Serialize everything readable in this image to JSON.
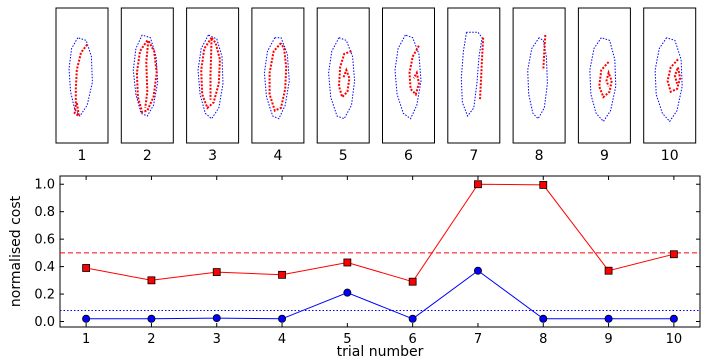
{
  "trials": [
    {
      "label": "1",
      "blue": [
        [
          0.42,
          0.22
        ],
        [
          0.3,
          0.3
        ],
        [
          0.25,
          0.45
        ],
        [
          0.28,
          0.62
        ],
        [
          0.36,
          0.75
        ],
        [
          0.46,
          0.8
        ],
        [
          0.6,
          0.72
        ],
        [
          0.7,
          0.55
        ],
        [
          0.68,
          0.36
        ],
        [
          0.58,
          0.24
        ],
        [
          0.42,
          0.22
        ]
      ],
      "red": [
        [
          0.6,
          0.27
        ],
        [
          0.48,
          0.33
        ],
        [
          0.4,
          0.46
        ],
        [
          0.38,
          0.6
        ],
        [
          0.38,
          0.72
        ],
        [
          0.36,
          0.78
        ],
        [
          0.44,
          0.8
        ],
        [
          0.4,
          0.7
        ]
      ]
    },
    {
      "label": "2",
      "blue": [
        [
          0.4,
          0.2
        ],
        [
          0.28,
          0.3
        ],
        [
          0.23,
          0.46
        ],
        [
          0.28,
          0.64
        ],
        [
          0.38,
          0.78
        ],
        [
          0.5,
          0.8
        ],
        [
          0.62,
          0.72
        ],
        [
          0.7,
          0.55
        ],
        [
          0.67,
          0.36
        ],
        [
          0.56,
          0.22
        ],
        [
          0.4,
          0.2
        ]
      ],
      "red": [
        [
          0.5,
          0.24
        ],
        [
          0.36,
          0.32
        ],
        [
          0.3,
          0.48
        ],
        [
          0.32,
          0.66
        ],
        [
          0.4,
          0.77
        ],
        [
          0.5,
          0.76
        ],
        [
          0.62,
          0.66
        ],
        [
          0.68,
          0.48
        ],
        [
          0.63,
          0.32
        ],
        [
          0.52,
          0.24
        ],
        [
          0.48,
          0.4
        ],
        [
          0.5,
          0.62
        ],
        [
          0.46,
          0.74
        ]
      ]
    },
    {
      "label": "3",
      "blue": [
        [
          0.42,
          0.2
        ],
        [
          0.28,
          0.3
        ],
        [
          0.22,
          0.46
        ],
        [
          0.26,
          0.64
        ],
        [
          0.36,
          0.78
        ],
        [
          0.48,
          0.82
        ],
        [
          0.62,
          0.74
        ],
        [
          0.7,
          0.56
        ],
        [
          0.68,
          0.36
        ],
        [
          0.58,
          0.23
        ],
        [
          0.42,
          0.2
        ]
      ],
      "red": [
        [
          0.48,
          0.22
        ],
        [
          0.34,
          0.3
        ],
        [
          0.28,
          0.46
        ],
        [
          0.3,
          0.64
        ],
        [
          0.4,
          0.74
        ],
        [
          0.52,
          0.7
        ],
        [
          0.62,
          0.56
        ],
        [
          0.64,
          0.38
        ],
        [
          0.56,
          0.26
        ],
        [
          0.48,
          0.22
        ],
        [
          0.46,
          0.5
        ],
        [
          0.46,
          0.68
        ]
      ]
    },
    {
      "label": "4",
      "blue": [
        [
          0.44,
          0.22
        ],
        [
          0.3,
          0.32
        ],
        [
          0.24,
          0.48
        ],
        [
          0.28,
          0.66
        ],
        [
          0.4,
          0.8
        ],
        [
          0.52,
          0.82
        ],
        [
          0.64,
          0.72
        ],
        [
          0.72,
          0.54
        ],
        [
          0.68,
          0.34
        ],
        [
          0.56,
          0.22
        ],
        [
          0.44,
          0.22
        ]
      ],
      "red": [
        [
          0.56,
          0.26
        ],
        [
          0.42,
          0.32
        ],
        [
          0.34,
          0.48
        ],
        [
          0.34,
          0.64
        ],
        [
          0.44,
          0.76
        ],
        [
          0.56,
          0.74
        ],
        [
          0.64,
          0.6
        ],
        [
          0.66,
          0.44
        ],
        [
          0.62,
          0.3
        ],
        [
          0.56,
          0.26
        ]
      ]
    },
    {
      "label": "5",
      "blue": [
        [
          0.42,
          0.22
        ],
        [
          0.28,
          0.32
        ],
        [
          0.22,
          0.48
        ],
        [
          0.26,
          0.66
        ],
        [
          0.38,
          0.8
        ],
        [
          0.52,
          0.82
        ],
        [
          0.66,
          0.72
        ],
        [
          0.72,
          0.54
        ],
        [
          0.68,
          0.36
        ],
        [
          0.56,
          0.24
        ],
        [
          0.42,
          0.22
        ]
      ],
      "red": [
        [
          0.66,
          0.32
        ],
        [
          0.52,
          0.34
        ],
        [
          0.44,
          0.44
        ],
        [
          0.42,
          0.58
        ],
        [
          0.48,
          0.66
        ],
        [
          0.58,
          0.62
        ],
        [
          0.62,
          0.52
        ],
        [
          0.56,
          0.46
        ],
        [
          0.5,
          0.52
        ]
      ]
    },
    {
      "label": "6",
      "blue": [
        [
          0.44,
          0.2
        ],
        [
          0.3,
          0.3
        ],
        [
          0.24,
          0.46
        ],
        [
          0.28,
          0.64
        ],
        [
          0.4,
          0.78
        ],
        [
          0.54,
          0.82
        ],
        [
          0.66,
          0.72
        ],
        [
          0.74,
          0.54
        ],
        [
          0.7,
          0.34
        ],
        [
          0.58,
          0.22
        ],
        [
          0.44,
          0.2
        ]
      ],
      "red": [
        [
          0.7,
          0.28
        ],
        [
          0.58,
          0.36
        ],
        [
          0.52,
          0.48
        ],
        [
          0.54,
          0.6
        ],
        [
          0.64,
          0.64
        ],
        [
          0.7,
          0.56
        ],
        [
          0.66,
          0.48
        ],
        [
          0.6,
          0.52
        ]
      ]
    },
    {
      "label": "7",
      "blue": [
        [
          0.36,
          0.18
        ],
        [
          0.3,
          0.32
        ],
        [
          0.26,
          0.52
        ],
        [
          0.28,
          0.7
        ],
        [
          0.38,
          0.8
        ],
        [
          0.5,
          0.74
        ],
        [
          0.56,
          0.56
        ],
        [
          0.6,
          0.36
        ],
        [
          0.66,
          0.22
        ],
        [
          0.58,
          0.18
        ],
        [
          0.36,
          0.18
        ]
      ],
      "red": [
        [
          0.68,
          0.22
        ],
        [
          0.66,
          0.36
        ],
        [
          0.64,
          0.52
        ],
        [
          0.62,
          0.68
        ]
      ]
    },
    {
      "label": "8",
      "blue": [
        [
          0.5,
          0.22
        ],
        [
          0.36,
          0.3
        ],
        [
          0.28,
          0.46
        ],
        [
          0.3,
          0.64
        ],
        [
          0.38,
          0.78
        ],
        [
          0.48,
          0.82
        ],
        [
          0.6,
          0.74
        ],
        [
          0.66,
          0.56
        ],
        [
          0.64,
          0.36
        ],
        [
          0.58,
          0.24
        ],
        [
          0.5,
          0.22
        ]
      ],
      "red": [
        [
          0.62,
          0.2
        ],
        [
          0.6,
          0.32
        ],
        [
          0.58,
          0.46
        ]
      ]
    },
    {
      "label": "9",
      "blue": [
        [
          0.44,
          0.22
        ],
        [
          0.3,
          0.3
        ],
        [
          0.22,
          0.46
        ],
        [
          0.24,
          0.64
        ],
        [
          0.34,
          0.78
        ],
        [
          0.48,
          0.84
        ],
        [
          0.62,
          0.76
        ],
        [
          0.72,
          0.58
        ],
        [
          0.7,
          0.38
        ],
        [
          0.6,
          0.24
        ],
        [
          0.44,
          0.22
        ]
      ],
      "red": [
        [
          0.58,
          0.4
        ],
        [
          0.44,
          0.46
        ],
        [
          0.4,
          0.58
        ],
        [
          0.48,
          0.66
        ],
        [
          0.6,
          0.62
        ],
        [
          0.64,
          0.54
        ],
        [
          0.58,
          0.48
        ],
        [
          0.54,
          0.54
        ],
        [
          0.58,
          0.58
        ]
      ]
    },
    {
      "label": "10",
      "blue": [
        [
          0.44,
          0.22
        ],
        [
          0.3,
          0.3
        ],
        [
          0.22,
          0.46
        ],
        [
          0.24,
          0.64
        ],
        [
          0.36,
          0.78
        ],
        [
          0.5,
          0.84
        ],
        [
          0.64,
          0.76
        ],
        [
          0.74,
          0.58
        ],
        [
          0.72,
          0.38
        ],
        [
          0.6,
          0.24
        ],
        [
          0.44,
          0.22
        ]
      ],
      "red": [
        [
          0.66,
          0.38
        ],
        [
          0.52,
          0.44
        ],
        [
          0.46,
          0.54
        ],
        [
          0.52,
          0.62
        ],
        [
          0.64,
          0.6
        ],
        [
          0.7,
          0.52
        ],
        [
          0.66,
          0.44
        ],
        [
          0.6,
          0.5
        ],
        [
          0.64,
          0.56
        ]
      ]
    }
  ],
  "chart_data": {
    "type": "line",
    "xlabel": "trial number",
    "ylabel": "normalised cost",
    "x": [
      1,
      2,
      3,
      4,
      5,
      6,
      7,
      8,
      9,
      10
    ],
    "xlim": [
      0.6,
      10.4
    ],
    "ylim": [
      -0.04,
      1.06
    ],
    "xticks": [
      "1",
      "2",
      "3",
      "4",
      "5",
      "6",
      "7",
      "8",
      "9",
      "10"
    ],
    "yticks": [
      "0.0",
      "0.2",
      "0.4",
      "0.6",
      "0.8",
      "1.0"
    ],
    "grid": false,
    "series": [
      {
        "color": "#ff0000",
        "marker": "square",
        "values": [
          0.39,
          0.3,
          0.36,
          0.34,
          0.43,
          0.29,
          1.0,
          0.995,
          0.37,
          0.49
        ]
      },
      {
        "color": "#0000ff",
        "marker": "circle",
        "values": [
          0.02,
          0.02,
          0.025,
          0.02,
          0.21,
          0.02,
          0.37,
          0.02,
          0.02,
          0.02
        ]
      }
    ],
    "hlines": [
      {
        "color": "#ff0000",
        "style": "dashed",
        "y": 0.5
      },
      {
        "color": "#0000ff",
        "style": "dotted",
        "y": 0.08
      }
    ]
  }
}
